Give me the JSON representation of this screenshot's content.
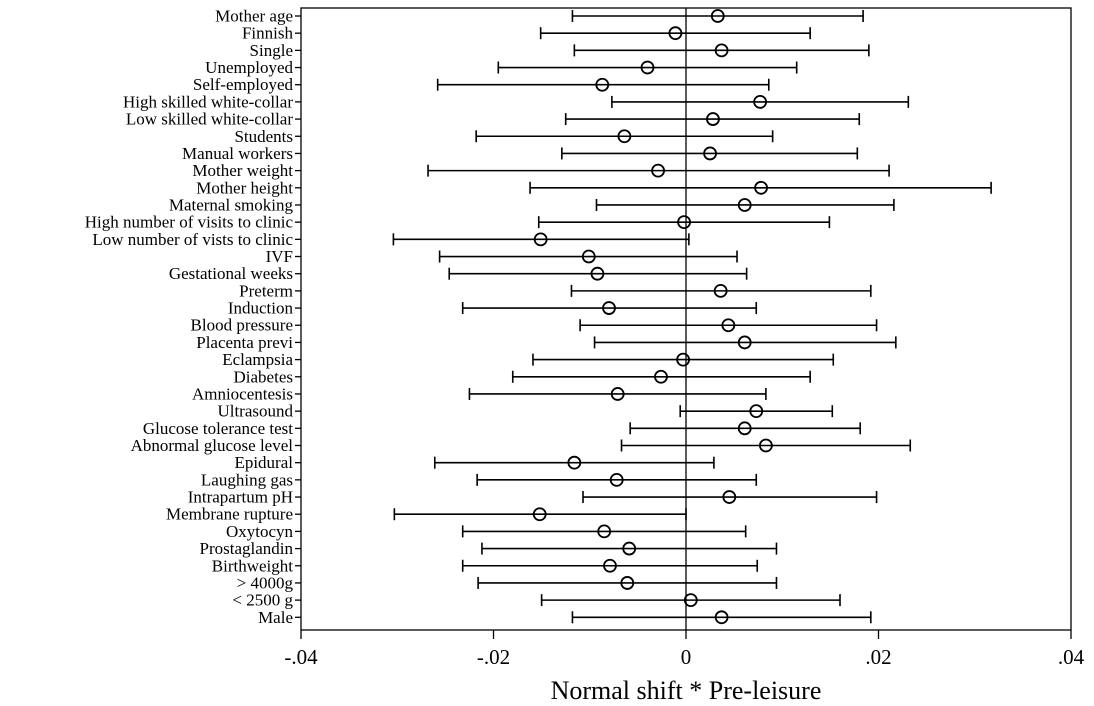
{
  "chart_data": {
    "type": "scatter",
    "subtype": "coefficient-plot-with-confidence-intervals",
    "xlabel": "Normal shift * Pre-leisure",
    "ylabel": "",
    "title": "",
    "xlim": [
      -0.04,
      0.04
    ],
    "xticks": [
      -0.04,
      -0.02,
      0,
      0.02,
      0.04
    ],
    "xtick_labels": [
      "-.04",
      "-.02",
      "0",
      ".02",
      ".04"
    ],
    "reference_line_x": 0,
    "grid": false,
    "legend": "none",
    "variables": [
      {
        "label": "Mother age",
        "estimate": 0.0033,
        "lower": -0.0118,
        "upper": 0.0184
      },
      {
        "label": "Finnish",
        "estimate": -0.0011,
        "lower": -0.0151,
        "upper": 0.0129
      },
      {
        "label": "Single",
        "estimate": 0.0037,
        "lower": -0.0116,
        "upper": 0.019
      },
      {
        "label": "Unemployed",
        "estimate": -0.004,
        "lower": -0.0195,
        "upper": 0.0115
      },
      {
        "label": "Self-employed",
        "estimate": -0.0087,
        "lower": -0.0258,
        "upper": 0.0086
      },
      {
        "label": "High skilled white-collar",
        "estimate": 0.0077,
        "lower": -0.0077,
        "upper": 0.0231
      },
      {
        "label": "Low skilled white-collar",
        "estimate": 0.0028,
        "lower": -0.0125,
        "upper": 0.018
      },
      {
        "label": "Students",
        "estimate": -0.0064,
        "lower": -0.0218,
        "upper": 0.009
      },
      {
        "label": "Manual workers",
        "estimate": 0.0025,
        "lower": -0.0129,
        "upper": 0.0178
      },
      {
        "label": "Mother weight",
        "estimate": -0.0029,
        "lower": -0.0268,
        "upper": 0.0211
      },
      {
        "label": "Mother height",
        "estimate": 0.0078,
        "lower": -0.0162,
        "upper": 0.0317
      },
      {
        "label": "Maternal smoking",
        "estimate": 0.0061,
        "lower": -0.0093,
        "upper": 0.0216
      },
      {
        "label": "High number of visits to clinic",
        "estimate": -0.0002,
        "lower": -0.0153,
        "upper": 0.0149
      },
      {
        "label": "Low number of vists to clinic",
        "estimate": -0.0151,
        "lower": -0.0304,
        "upper": 0.0003
      },
      {
        "label": "IVF",
        "estimate": -0.0101,
        "lower": -0.0256,
        "upper": 0.0053
      },
      {
        "label": "Gestational weeks",
        "estimate": -0.0092,
        "lower": -0.0246,
        "upper": 0.0063
      },
      {
        "label": "Preterm",
        "estimate": 0.0036,
        "lower": -0.0119,
        "upper": 0.0192
      },
      {
        "label": "Induction",
        "estimate": -0.008,
        "lower": -0.0232,
        "upper": 0.0073
      },
      {
        "label": "Blood pressure",
        "estimate": 0.0044,
        "lower": -0.011,
        "upper": 0.0198
      },
      {
        "label": "Placenta previ",
        "estimate": 0.0061,
        "lower": -0.0095,
        "upper": 0.0218
      },
      {
        "label": "Eclampsia",
        "estimate": -0.0003,
        "lower": -0.0159,
        "upper": 0.0153
      },
      {
        "label": "Diabetes",
        "estimate": -0.0026,
        "lower": -0.018,
        "upper": 0.0129
      },
      {
        "label": "Amniocentesis",
        "estimate": -0.0071,
        "lower": -0.0225,
        "upper": 0.0083
      },
      {
        "label": "Ultrasound",
        "estimate": 0.0073,
        "lower": -0.0006,
        "upper": 0.0152
      },
      {
        "label": "Glucose tolerance test",
        "estimate": 0.0061,
        "lower": -0.0058,
        "upper": 0.0181
      },
      {
        "label": "Abnormal glucose level",
        "estimate": 0.0083,
        "lower": -0.0067,
        "upper": 0.0233
      },
      {
        "label": "Epidural",
        "estimate": -0.0116,
        "lower": -0.0261,
        "upper": 0.0029
      },
      {
        "label": "Laughing gas",
        "estimate": -0.0072,
        "lower": -0.0217,
        "upper": 0.0073
      },
      {
        "label": "Intrapartum pH",
        "estimate": 0.0045,
        "lower": -0.0107,
        "upper": 0.0198
      },
      {
        "label": "Membrane rupture",
        "estimate": -0.0152,
        "lower": -0.0303,
        "upper": 0.0
      },
      {
        "label": "Oxytocyn",
        "estimate": -0.0085,
        "lower": -0.0232,
        "upper": 0.0062
      },
      {
        "label": "Prostaglandin",
        "estimate": -0.0059,
        "lower": -0.0212,
        "upper": 0.0094
      },
      {
        "label": "Birthweight",
        "estimate": -0.0079,
        "lower": -0.0232,
        "upper": 0.0074
      },
      {
        "label": "> 4000g",
        "estimate": -0.0061,
        "lower": -0.0216,
        "upper": 0.0094
      },
      {
        "label": "< 2500 g",
        "estimate": 0.0005,
        "lower": -0.015,
        "upper": 0.016
      },
      {
        "label": "Male",
        "estimate": 0.0037,
        "lower": -0.0118,
        "upper": 0.0192
      }
    ]
  }
}
